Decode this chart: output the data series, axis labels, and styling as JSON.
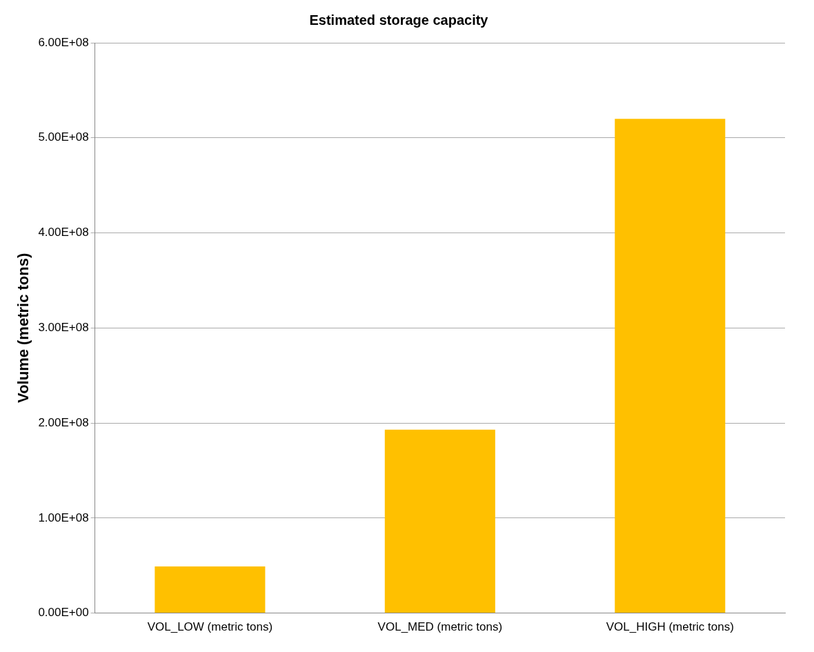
{
  "chart_data": {
    "type": "bar",
    "title": "Estimated storage capacity",
    "ylabel": "Volume (metric tons)",
    "categories": [
      "VOL_LOW (metric tons)",
      "VOL_MED (metric tons)",
      "VOL_HIGH (metric tons)"
    ],
    "values": [
      49000000,
      193000000,
      520000000
    ],
    "color": "#ffc000",
    "ylim": [
      0,
      600000000
    ],
    "yticks": [
      {
        "value": 0,
        "label": "0.00E+00"
      },
      {
        "value": 100000000,
        "label": "1.00E+08"
      },
      {
        "value": 200000000,
        "label": "2.00E+08"
      },
      {
        "value": 300000000,
        "label": "3.00E+08"
      },
      {
        "value": 400000000,
        "label": "4.00E+08"
      },
      {
        "value": 500000000,
        "label": "5.00E+08"
      },
      {
        "value": 600000000,
        "label": "6.00E+08"
      }
    ],
    "grid": "y",
    "legend": false
  }
}
